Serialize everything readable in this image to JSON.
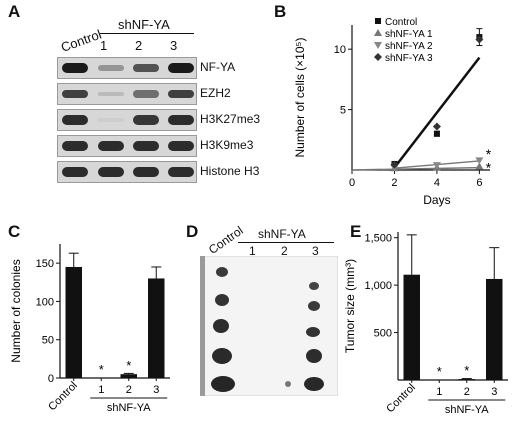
{
  "figure": {
    "panels": {
      "A": {
        "letter": "A",
        "lane_labels": [
          "Control",
          "shNF-YA",
          "1",
          "2",
          "3"
        ],
        "rows": [
          "NF-YA",
          "EZH2",
          "H3K27me3",
          "H3K9me3",
          "Histone H3"
        ],
        "band_intensity": [
          [
            1.0,
            0.35,
            0.7,
            1.0
          ],
          [
            0.8,
            0.15,
            0.55,
            0.8
          ],
          [
            0.9,
            0.05,
            0.85,
            0.9
          ],
          [
            0.9,
            0.9,
            0.9,
            0.9
          ],
          [
            0.9,
            0.9,
            0.9,
            0.9
          ]
        ]
      },
      "B": {
        "letter": "B",
        "ylabel": "Number of cells (×10⁵)",
        "xlabel": "Days",
        "legend": [
          "Control",
          "shNF-YA 1",
          "shNF-YA 2",
          "shNF-YA 3"
        ],
        "star": "*"
      },
      "C": {
        "letter": "C",
        "ylabel": "Number of colonies",
        "group_label": "shNF-YA",
        "star": "*"
      },
      "D": {
        "letter": "D",
        "lane_labels": [
          "Control",
          "shNF-YA",
          "1",
          "2",
          "3"
        ]
      },
      "E": {
        "letter": "E",
        "ylabel": "Tumor size (mm³)",
        "group_label": "shNF-YA",
        "star": "*"
      }
    }
  },
  "chart_data": [
    {
      "type": "line",
      "panel": "B",
      "xlabel": "Days",
      "ylabel": "Number of cells (×10⁵)",
      "x_ticks": [
        0,
        2,
        4,
        6
      ],
      "y_ticks": [
        5,
        10
      ],
      "xlim": [
        0,
        6.5
      ],
      "ylim": [
        0,
        12
      ],
      "legend_position": "top-right",
      "series": [
        {
          "name": "Control",
          "x": [
            2,
            4,
            6
          ],
          "y": [
            0.5,
            3.0,
            11.0
          ],
          "fit": [
            [
              2,
              0.2
            ],
            [
              6,
              9.3
            ]
          ],
          "err": [
            0.1,
            0.2,
            0.7
          ]
        },
        {
          "name": "shNF-YA 1",
          "x": [
            2,
            4,
            6
          ],
          "y": [
            0.15,
            0.2,
            0.3
          ],
          "fit": [
            [
              0,
              0
            ],
            [
              6,
              0.2
            ]
          ]
        },
        {
          "name": "shNF-YA 2",
          "x": [
            2,
            4,
            6
          ],
          "y": [
            0.2,
            0.4,
            0.8
          ],
          "fit": [
            [
              2,
              0.15
            ],
            [
              6,
              0.75
            ]
          ]
        },
        {
          "name": "shNF-YA 3",
          "x": [
            2,
            4,
            6
          ],
          "y": [
            0.45,
            3.6,
            10.8
          ],
          "fit": []
        }
      ]
    },
    {
      "type": "bar",
      "panel": "C",
      "categories": [
        "Control",
        "1",
        "2",
        "3"
      ],
      "values": [
        145,
        0,
        5,
        130
      ],
      "errors": [
        18,
        0,
        1,
        15
      ],
      "stars": [
        false,
        true,
        true,
        false
      ],
      "ylabel": "Number of colonies",
      "y_ticks": [
        0,
        50,
        100,
        150
      ],
      "ylim": [
        0,
        175
      ]
    },
    {
      "type": "bar",
      "panel": "E",
      "categories": [
        "Control",
        "1",
        "2",
        "3"
      ],
      "values": [
        1110,
        0,
        10,
        1065
      ],
      "errors": [
        420,
        0,
        5,
        330
      ],
      "stars": [
        false,
        true,
        true,
        false
      ],
      "ylabel": "Tumor size (mm³)",
      "y_ticks": [
        500,
        1000,
        1500
      ],
      "y_tick_labels": [
        "500",
        "1,000",
        "1,500"
      ],
      "ylim": [
        0,
        1560
      ]
    }
  ]
}
